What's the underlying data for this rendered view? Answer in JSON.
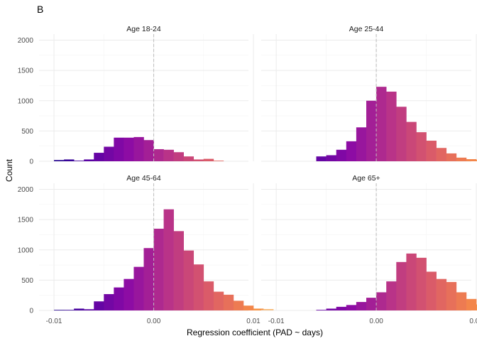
{
  "figure": {
    "tag": "B",
    "xlabel": "Regression coefficient (PAD ~ days)",
    "ylabel": "Count"
  },
  "chart_data": {
    "type": "bar",
    "subtype": "histogram",
    "facets_layout": "2x2",
    "shared_axes": true,
    "xlim": [
      -0.0115,
      0.0095
    ],
    "ylim": [
      0,
      2100
    ],
    "x_ticks": [
      -0.01,
      0.0,
      0.01
    ],
    "x_tick_labels": [
      "-0.01",
      "0.00",
      "0.01"
    ],
    "y_ticks": [
      0,
      500,
      1000,
      1500,
      2000
    ],
    "y_tick_labels": [
      "0",
      "500",
      "1000",
      "1500",
      "2000"
    ],
    "bin_width": 0.001,
    "bin_start": -0.01,
    "reference_line_x": 0,
    "grid": true,
    "color_scale": "plasma",
    "colors": [
      "#0d0887",
      "#5302a3",
      "#8b0aa5",
      "#b83289",
      "#db5c68",
      "#f48849",
      "#febd2a",
      "#f0f921"
    ],
    "color_range": [
      -0.011,
      0.018
    ],
    "panels": [
      {
        "title": "Age 18-24",
        "counts": [
          20,
          30,
          10,
          30,
          140,
          240,
          390,
          390,
          400,
          350,
          200,
          190,
          150,
          80,
          30,
          40,
          10
        ]
      },
      {
        "title": "Age 25-44",
        "counts": [
          0,
          0,
          0,
          0,
          80,
          100,
          190,
          330,
          560,
          1000,
          1230,
          1150,
          900,
          650,
          480,
          340,
          220,
          130,
          60,
          35,
          20,
          10,
          5,
          5,
          5,
          5,
          10
        ]
      },
      {
        "title": "Age 45-64",
        "counts": [
          10,
          10,
          30,
          20,
          150,
          270,
          380,
          520,
          720,
          1030,
          1350,
          1670,
          1310,
          990,
          760,
          480,
          310,
          260,
          160,
          80,
          30,
          20
        ]
      },
      {
        "title": "Age 65+",
        "counts": [
          0,
          0,
          0,
          0,
          10,
          30,
          60,
          90,
          140,
          210,
          300,
          480,
          800,
          940,
          870,
          640,
          520,
          470,
          300,
          190,
          100,
          60,
          30,
          20,
          10
        ]
      }
    ]
  }
}
